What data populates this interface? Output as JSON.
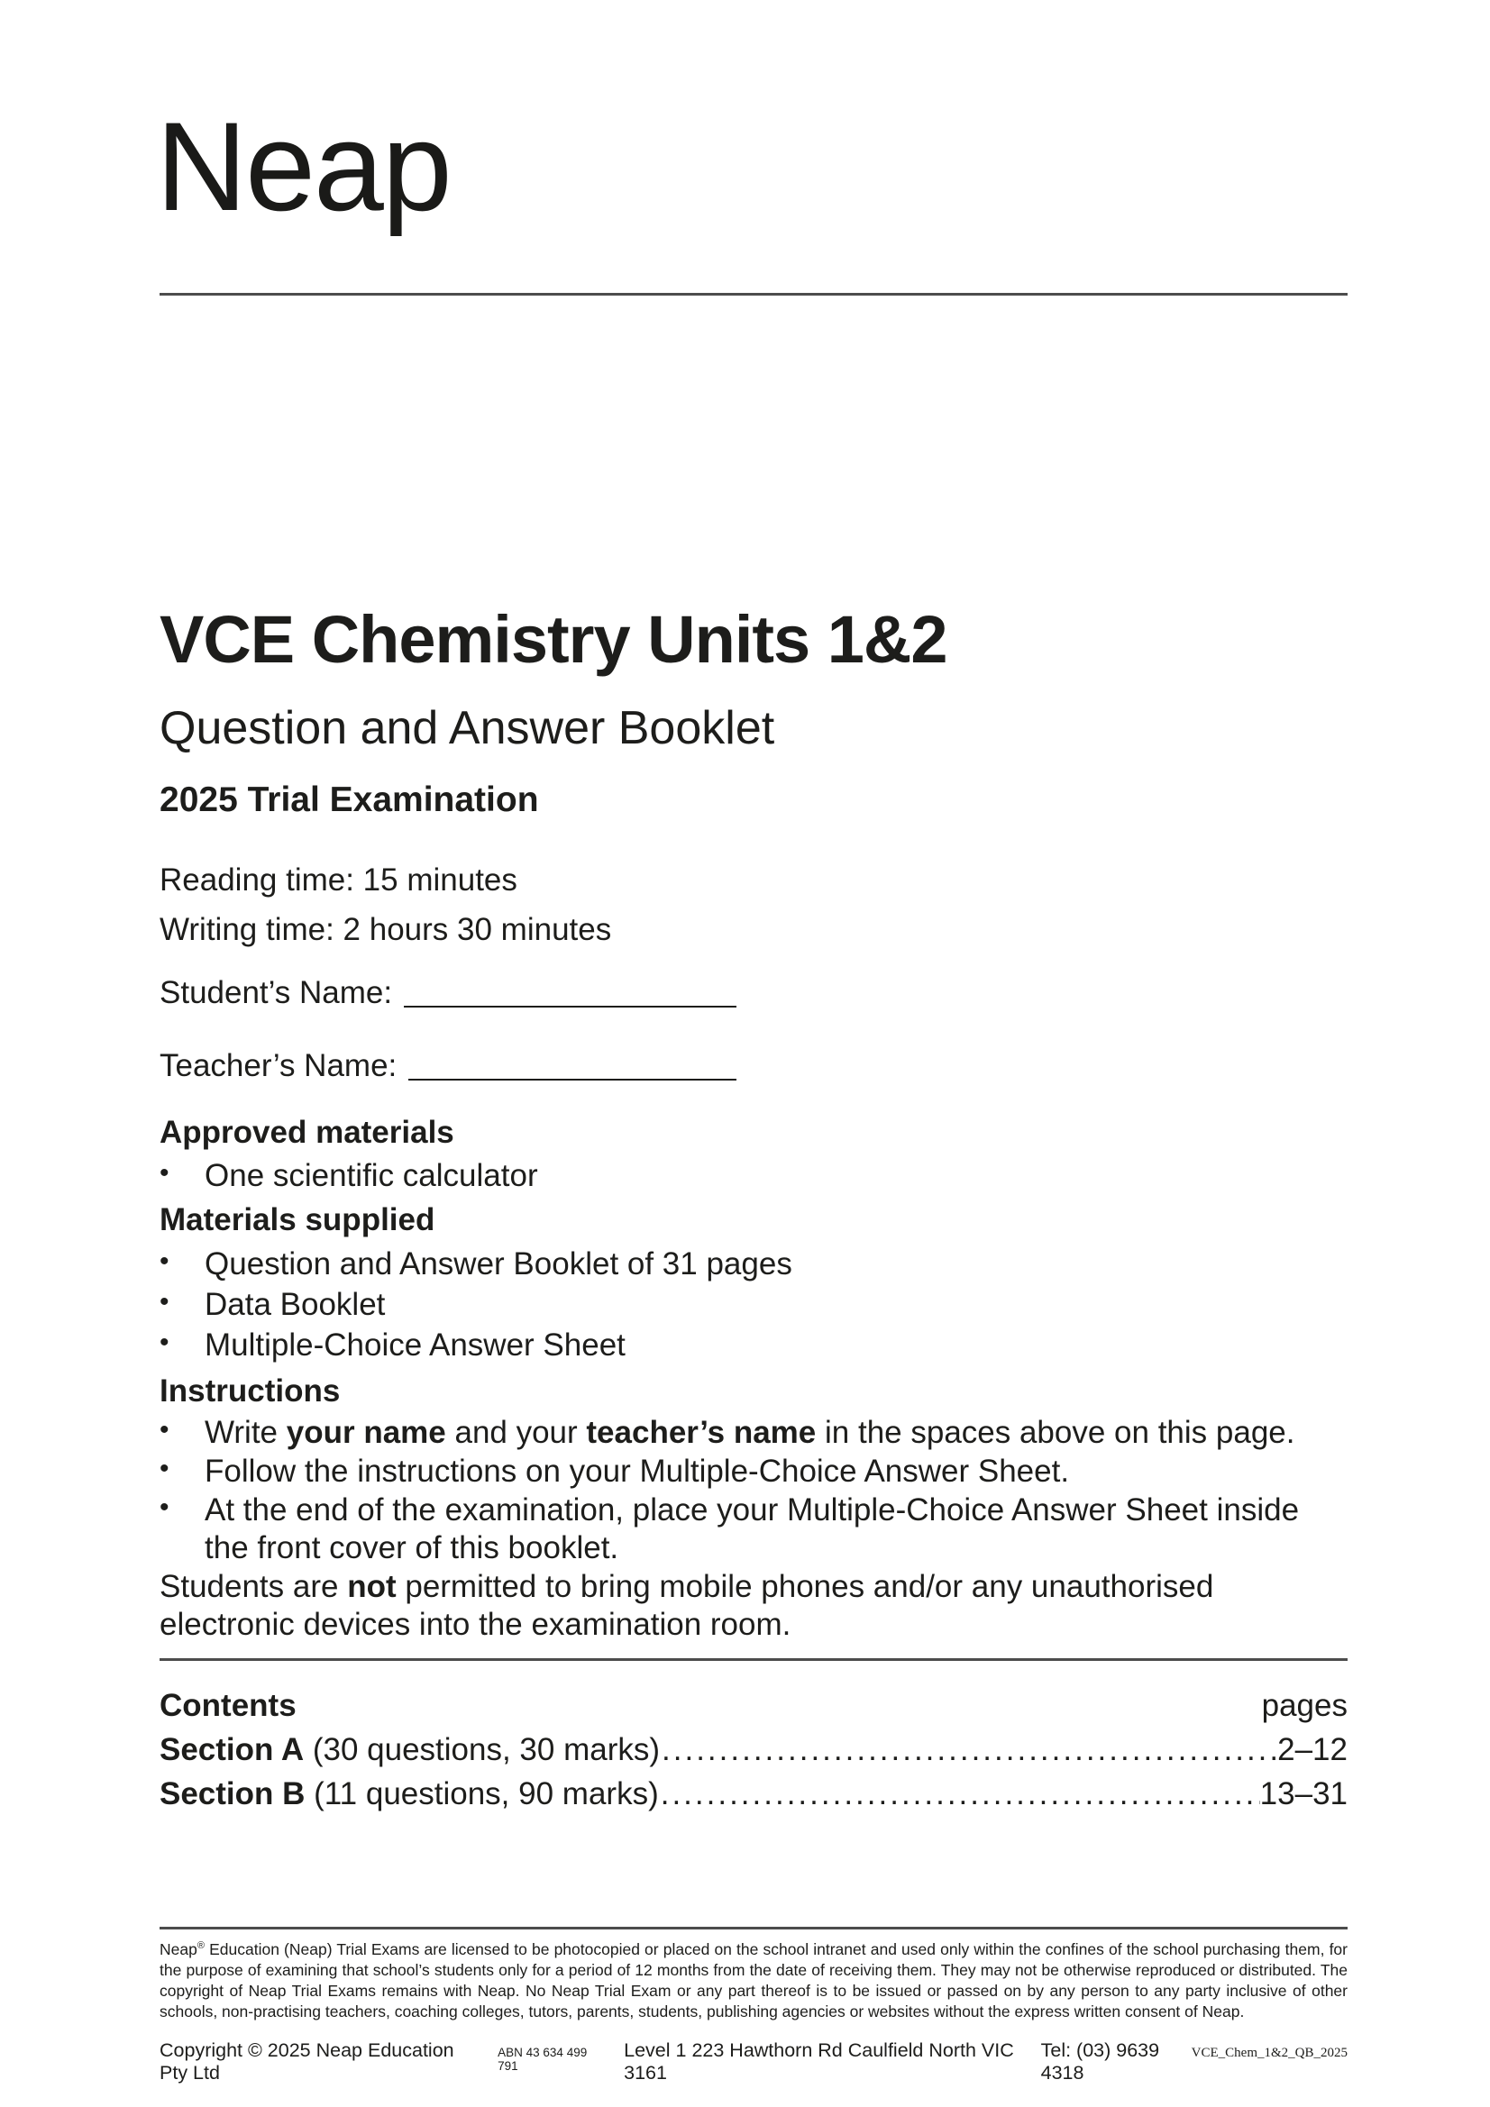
{
  "logo": "Neap",
  "header": {
    "title": "VCE Chemistry Units 1&2",
    "subtitle": "Question and Answer Booklet",
    "exam_label": "2025 Trial Examination",
    "reading_time": "Reading time: 15 minutes",
    "writing_time": "Writing time: 2 hours 30 minutes",
    "student_name_label": "Student’s Name:",
    "teacher_name_label": "Teacher’s Name:"
  },
  "bullet_char": "•",
  "approved_materials": {
    "heading": "Approved materials",
    "items": [
      [
        {
          "text": "One scientific calculator"
        }
      ]
    ]
  },
  "materials_supplied": {
    "heading": "Materials supplied",
    "items": [
      [
        {
          "text": "Question and Answer Booklet of 31 pages"
        }
      ],
      [
        {
          "text": "Data Booklet"
        }
      ],
      [
        {
          "text": "Multiple-Choice Answer Sheet"
        }
      ]
    ]
  },
  "instructions": {
    "heading": "Instructions",
    "items": [
      [
        {
          "text": "Write "
        },
        {
          "text": "your name",
          "bold": true
        },
        {
          "text": " and your "
        },
        {
          "text": "teacher’s name",
          "bold": true
        },
        {
          "text": " in the spaces above on this page."
        }
      ],
      [
        {
          "text": "Follow the instructions on your Multiple-Choice Answer Sheet."
        }
      ],
      [
        {
          "text": "At the end of the examination, place your Multiple-Choice Answer Sheet inside the front cover of this booklet."
        }
      ]
    ],
    "note": [
      {
        "text": "Students are "
      },
      {
        "text": "not",
        "bold": true
      },
      {
        "text": " permitted to bring mobile phones and/or any unauthorised electronic devices into the examination room."
      }
    ]
  },
  "contents": {
    "heading": "Contents",
    "pages_label": "pages",
    "rows": [
      {
        "section": "Section A",
        "detail": " (30 questions, 30 marks) ",
        "pages": "2–12"
      },
      {
        "section": "Section B",
        "detail": " (11 questions, 90 marks)",
        "pages": "13–31"
      }
    ]
  },
  "footer": {
    "license": [
      {
        "text": "Neap"
      },
      {
        "text": "®",
        "sup": true
      },
      {
        "text": " Education (Neap) Trial Exams are licensed to be photocopied or placed on the school intranet and used only within the confines of the school purchasing them, for the purpose of examining that school’s students only for a period of 12 months from the date of receiving them. They may not be otherwise reproduced or distributed. The copyright of Neap Trial Exams remains with Neap. No Neap Trial Exam or any part thereof is to be issued or passed on by any person to any party inclusive of other schools, non-practising teachers, coaching colleges, tutors, parents, students, publishing agencies or websites without the express written consent of Neap."
      }
    ],
    "copyright": "Copyright © 2025 Neap Education Pty Ltd",
    "abn": "ABN 43 634 499 791",
    "address": "Level 1 223 Hawthorn Rd Caulfield North VIC 3161",
    "tel": "Tel: (03) 9639 4318",
    "doc_code": "VCE_Chem_1&2_QB_2025"
  }
}
